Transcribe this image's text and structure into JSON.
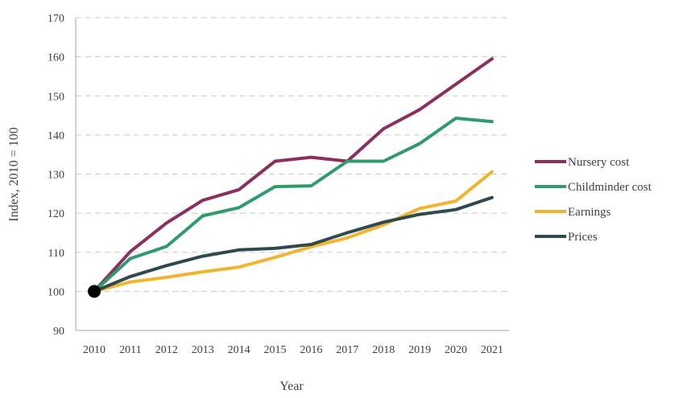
{
  "chart_data": {
    "type": "line",
    "xlabel": "Year",
    "ylabel": "Index, 2010 = 100",
    "ylim": [
      90,
      170
    ],
    "yticks": [
      90,
      100,
      110,
      120,
      130,
      140,
      150,
      160,
      170
    ],
    "grid": true,
    "legend_position": "right",
    "categories": [
      "2010",
      "2011",
      "2012",
      "2013",
      "2014",
      "2015",
      "2016",
      "2017",
      "2018",
      "2019",
      "2020",
      "2021"
    ],
    "highlight_point": {
      "category": "2010",
      "value": 100,
      "color": "#000000"
    },
    "series": [
      {
        "name": "Nursery cost",
        "color": "#8b2f5f",
        "values": [
          100,
          110.2,
          117.5,
          123.3,
          126.0,
          133.3,
          134.3,
          133.3,
          141.6,
          146.5,
          153.0,
          159.5
        ]
      },
      {
        "name": "Childminder cost",
        "color": "#2e9a6e",
        "values": [
          100,
          108.4,
          111.5,
          119.3,
          121.4,
          126.8,
          127.0,
          133.3,
          133.3,
          137.8,
          144.3,
          143.4
        ]
      },
      {
        "name": "Earnings",
        "color": "#f2b42c",
        "values": [
          100,
          102.4,
          103.6,
          105.0,
          106.2,
          108.7,
          111.4,
          113.7,
          117.0,
          121.2,
          123.1,
          130.6
        ]
      },
      {
        "name": "Prices",
        "color": "#2f4a4f",
        "values": [
          100,
          103.8,
          106.6,
          109.0,
          110.6,
          111.0,
          112.0,
          115.0,
          117.7,
          119.7,
          120.9,
          124.0
        ]
      }
    ]
  }
}
